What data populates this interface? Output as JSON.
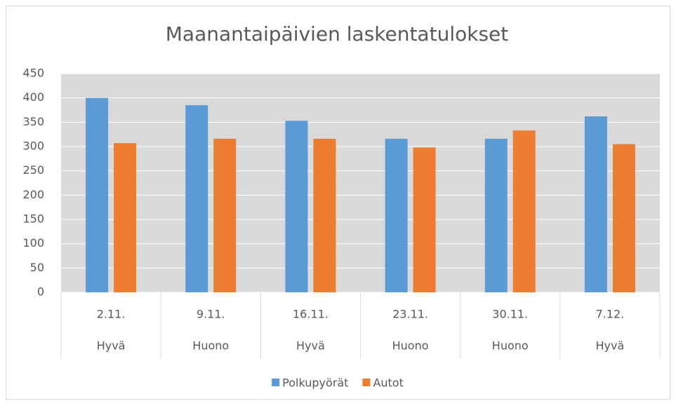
{
  "chart_data": {
    "type": "bar",
    "title": "Maanantaipäivien laskentatulokset",
    "categories": [
      "2.11.",
      "9.11.",
      "16.11.",
      "23.11.",
      "30.11.",
      "7.12."
    ],
    "weather": [
      "Hyvä",
      "Huono",
      "Hyvä",
      "Huono",
      "Huono",
      "Hyvä"
    ],
    "series": [
      {
        "name": "Polkupyörät",
        "color": "#5b9bd5",
        "values": [
          400,
          385,
          353,
          316,
          316,
          362
        ]
      },
      {
        "name": "Autot",
        "color": "#ed7d31",
        "values": [
          307,
          316,
          316,
          298,
          333,
          305
        ]
      }
    ],
    "ylim": [
      0,
      450
    ],
    "yticks": [
      0,
      50,
      100,
      150,
      200,
      250,
      300,
      350,
      400,
      450
    ],
    "grid": true,
    "legend": "bottom"
  }
}
